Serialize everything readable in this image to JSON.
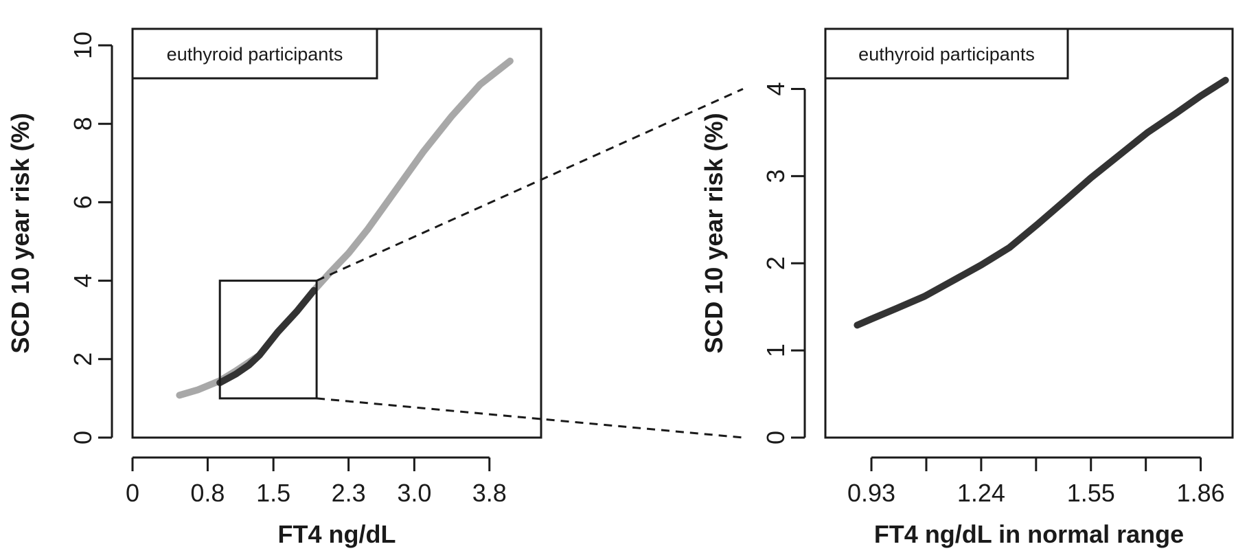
{
  "chart_data": [
    {
      "type": "line",
      "xlabel": "FT4 ng/dL",
      "ylabel": "SCD 10 year risk (%)",
      "legend": "euthyroid participants",
      "legend_position": "top-left",
      "xlim": [
        0,
        4.35
      ],
      "ylim": [
        0,
        10
      ],
      "x_ticks": [
        0,
        0.8,
        1.5,
        2.3,
        3.0,
        3.8
      ],
      "x_tick_labels": [
        "0",
        "0.8",
        "1.5",
        "2.3",
        "3.0",
        "3.8"
      ],
      "y_ticks": [
        0,
        2,
        4,
        6,
        8,
        10
      ],
      "y_tick_labels": [
        "0",
        "2",
        "4",
        "6",
        "8",
        "10"
      ],
      "grid": false,
      "series": [
        {
          "color": "#a8a8a8",
          "x": [
            0.5,
            0.7,
            0.93,
            1.1,
            1.35,
            1.55,
            1.75,
            1.93,
            2.1,
            2.3,
            2.5,
            2.8,
            3.1,
            3.4,
            3.7,
            4.02
          ],
          "y": [
            1.08,
            1.22,
            1.45,
            1.7,
            2.1,
            2.7,
            3.22,
            3.75,
            4.2,
            4.7,
            5.3,
            6.3,
            7.3,
            8.2,
            9.0,
            9.6
          ]
        },
        {
          "color": "#333333",
          "x": [
            0.93,
            1.1,
            1.24,
            1.35,
            1.55,
            1.75,
            1.93
          ],
          "y": [
            1.4,
            1.62,
            1.85,
            2.1,
            2.7,
            3.22,
            3.75
          ]
        }
      ],
      "zoom_box": {
        "x": [
          0.93,
          1.96
        ],
        "y": [
          1.0,
          4.0
        ]
      }
    },
    {
      "type": "line",
      "xlabel": "FT4 ng/dL in normal range",
      "ylabel": "SCD 10 year risk (%)",
      "legend": "euthyroid participants",
      "legend_position": "top-left",
      "xlim": [
        0.8,
        1.95
      ],
      "ylim": [
        0,
        4.5
      ],
      "x_ticks": [
        0.93,
        1.085,
        1.24,
        1.395,
        1.55,
        1.705,
        1.86
      ],
      "x_tick_labels": [
        "0.93",
        "",
        "1.24",
        "",
        "1.55",
        "",
        "1.86"
      ],
      "y_ticks": [
        0,
        1,
        2,
        3,
        4
      ],
      "y_tick_labels": [
        "0",
        "1",
        "2",
        "3",
        "4"
      ],
      "grid": false,
      "series": [
        {
          "color": "#333333",
          "x": [
            0.89,
            0.93,
            1.0,
            1.08,
            1.16,
            1.24,
            1.32,
            1.4,
            1.48,
            1.55,
            1.63,
            1.71,
            1.79,
            1.86,
            1.93
          ],
          "y": [
            1.29,
            1.36,
            1.48,
            1.62,
            1.8,
            1.98,
            2.18,
            2.45,
            2.73,
            2.98,
            3.24,
            3.5,
            3.72,
            3.92,
            4.1
          ]
        }
      ]
    }
  ]
}
